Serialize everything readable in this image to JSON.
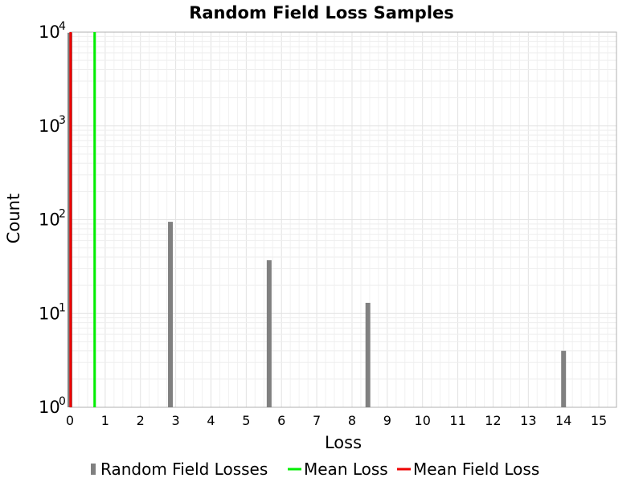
{
  "chart_data": {
    "type": "bar",
    "title": "Random Field Loss Samples",
    "xlabel": "Loss",
    "ylabel": "Count",
    "xlim": [
      0,
      15.5
    ],
    "ylim": [
      1,
      10000
    ],
    "yscale": "log",
    "grid": true,
    "legend_position": "bottom",
    "x_ticks": [
      "0",
      "1",
      "2",
      "3",
      "4",
      "5",
      "6",
      "7",
      "8",
      "9",
      "10",
      "11",
      "12",
      "13",
      "14",
      "15"
    ],
    "y_ticks": [
      {
        "value": 1,
        "base": "10",
        "exp": "0"
      },
      {
        "value": 10,
        "base": "10",
        "exp": "1"
      },
      {
        "value": 100,
        "base": "10",
        "exp": "2"
      },
      {
        "value": 1000,
        "base": "10",
        "exp": "3"
      },
      {
        "value": 10000,
        "base": "10",
        "exp": "4"
      }
    ],
    "series": [
      {
        "name": "Random Field Losses",
        "kind": "bars",
        "color": "#808080",
        "points": [
          {
            "x": 0.0,
            "y": 9850
          },
          {
            "x": 2.85,
            "y": 95
          },
          {
            "x": 5.65,
            "y": 37
          },
          {
            "x": 8.45,
            "y": 13
          },
          {
            "x": 14.0,
            "y": 4
          }
        ]
      },
      {
        "name": "Mean Loss",
        "kind": "vline",
        "color": "#00ee00",
        "x": 0.7
      },
      {
        "name": "Mean Field Loss",
        "kind": "vline",
        "color": "#ee0000",
        "x": 0.02
      }
    ]
  }
}
